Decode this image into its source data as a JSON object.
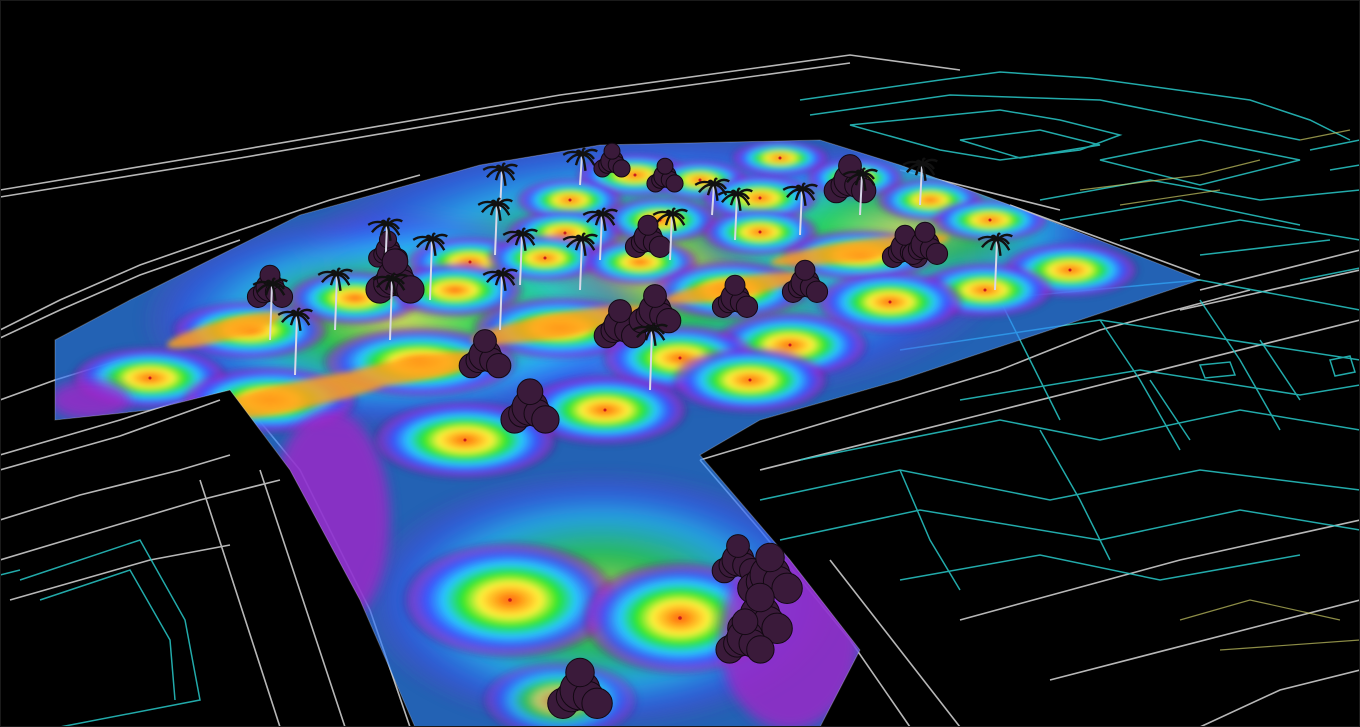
{
  "scene": {
    "kind": "3d-lighting-illuminance-render",
    "background_color": "#000000",
    "colors": {
      "site_linework": "#d8d8d8",
      "building_linework": "#28c8c8",
      "secondary_linework": "#c8c864",
      "trees": "#3a1a3a"
    },
    "heatmap_scale": [
      {
        "level": "peak",
        "color": "#ff5a10"
      },
      {
        "level": "high",
        "color": "#ffa11a"
      },
      {
        "level": "upper-mid",
        "color": "#fff23c"
      },
      {
        "level": "mid",
        "color": "#28e628"
      },
      {
        "level": "lower-mid",
        "color": "#28c8ff"
      },
      {
        "level": "low",
        "color": "#3c50ff"
      },
      {
        "level": "very-low",
        "color": "#a028c8"
      },
      {
        "level": "floor",
        "color": "#320050"
      }
    ]
  }
}
